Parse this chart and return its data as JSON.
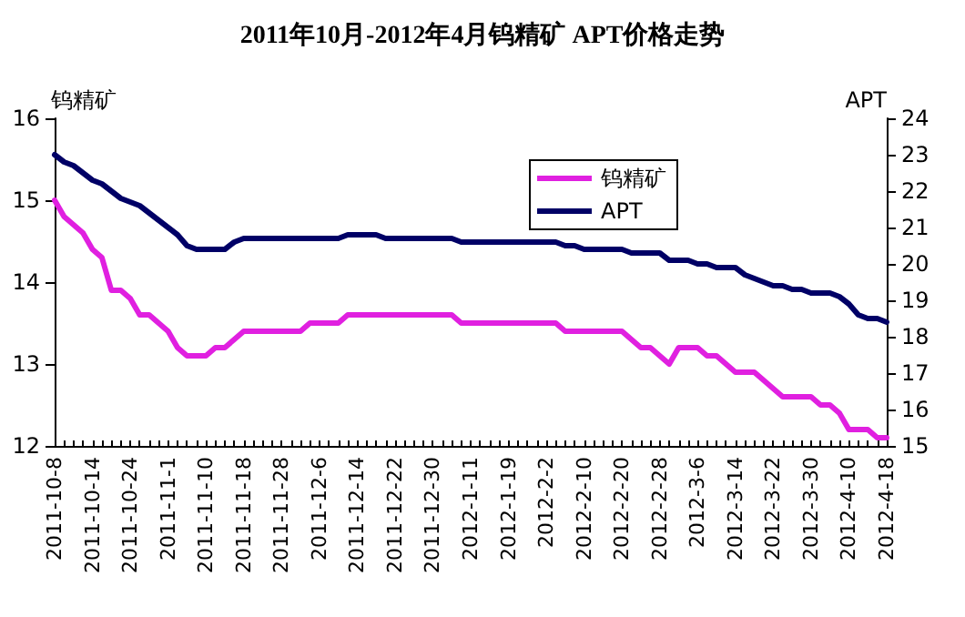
{
  "chart_data": {
    "type": "line",
    "title": "2011年10月-2012年4月钨精矿 APT价格走势",
    "ylabel": "钨精矿",
    "y2label": "APT",
    "categories": [
      "2011-10-8",
      null,
      null,
      null,
      "2011-10-14",
      null,
      null,
      null,
      "2011-10-24",
      null,
      null,
      null,
      "2011-11-1",
      null,
      null,
      null,
      "2011-11-10",
      null,
      null,
      null,
      "2011-11-18",
      null,
      null,
      null,
      "2011-11-28",
      null,
      null,
      null,
      "2011-12-6",
      null,
      null,
      null,
      "2011-12-14",
      null,
      null,
      null,
      "2011-12-22",
      null,
      null,
      null,
      "2011-12-30",
      null,
      null,
      null,
      "2012-1-11",
      null,
      null,
      null,
      "2012-1-19",
      null,
      null,
      null,
      "2012-2-2",
      null,
      null,
      null,
      "2012-2-10",
      null,
      null,
      null,
      "2012-2-20",
      null,
      null,
      null,
      "2012-2-28",
      null,
      null,
      null,
      "2012-3-6",
      null,
      null,
      null,
      "2012-3-14",
      null,
      null,
      null,
      "2012-3-22",
      null,
      null,
      null,
      "2012-3-30",
      null,
      null,
      null,
      "2012-4-10",
      null,
      null,
      null,
      "2012-4-18"
    ],
    "series": [
      {
        "name": "钨精矿",
        "color": "#e020e0",
        "values": [
          15.0,
          14.8,
          14.7,
          14.6,
          14.4,
          14.3,
          13.9,
          13.9,
          13.8,
          13.6,
          13.6,
          13.5,
          13.4,
          13.2,
          13.1,
          13.1,
          13.1,
          13.2,
          13.2,
          13.3,
          13.4,
          13.4,
          13.4,
          13.4,
          13.4,
          13.4,
          13.4,
          13.5,
          13.5,
          13.5,
          13.5,
          13.6,
          13.6,
          13.6,
          13.6,
          13.6,
          13.6,
          13.6,
          13.6,
          13.6,
          13.6,
          13.6,
          13.6,
          13.5,
          13.5,
          13.5,
          13.5,
          13.5,
          13.5,
          13.5,
          13.5,
          13.5,
          13.5,
          13.5,
          13.4,
          13.4,
          13.4,
          13.4,
          13.4,
          13.4,
          13.4,
          13.3,
          13.2,
          13.2,
          13.1,
          13.0,
          13.2,
          13.2,
          13.2,
          13.1,
          13.1,
          13.0,
          12.9,
          12.9,
          12.9,
          12.8,
          12.7,
          12.6,
          12.6,
          12.6,
          12.6,
          12.5,
          12.5,
          12.4,
          12.2,
          12.2,
          12.2,
          12.1,
          12.1
        ]
      },
      {
        "name": "APT",
        "color": "#000066",
        "axis": "y2",
        "values": [
          23.0,
          22.8,
          22.7,
          22.5,
          22.3,
          22.2,
          22.0,
          21.8,
          21.7,
          21.6,
          21.4,
          21.2,
          21.0,
          20.8,
          20.5,
          20.4,
          20.4,
          20.4,
          20.4,
          20.6,
          20.7,
          20.7,
          20.7,
          20.7,
          20.7,
          20.7,
          20.7,
          20.7,
          20.7,
          20.7,
          20.7,
          20.8,
          20.8,
          20.8,
          20.8,
          20.7,
          20.7,
          20.7,
          20.7,
          20.7,
          20.7,
          20.7,
          20.7,
          20.6,
          20.6,
          20.6,
          20.6,
          20.6,
          20.6,
          20.6,
          20.6,
          20.6,
          20.6,
          20.6,
          20.5,
          20.5,
          20.4,
          20.4,
          20.4,
          20.4,
          20.4,
          20.3,
          20.3,
          20.3,
          20.3,
          20.1,
          20.1,
          20.1,
          20.0,
          20.0,
          19.9,
          19.9,
          19.9,
          19.7,
          19.6,
          19.5,
          19.4,
          19.4,
          19.3,
          19.3,
          19.2,
          19.2,
          19.2,
          19.1,
          18.9,
          18.6,
          18.5,
          18.5,
          18.4
        ]
      }
    ],
    "ylim": [
      12,
      16
    ],
    "yticks": [
      12,
      13,
      14,
      15,
      16
    ],
    "y2lim": [
      15,
      24
    ],
    "y2ticks": [
      15,
      16,
      17,
      18,
      19,
      20,
      21,
      22,
      23,
      24
    ],
    "legend": "top right",
    "grid": false,
    "marker": "none",
    "line_style": "solid"
  }
}
